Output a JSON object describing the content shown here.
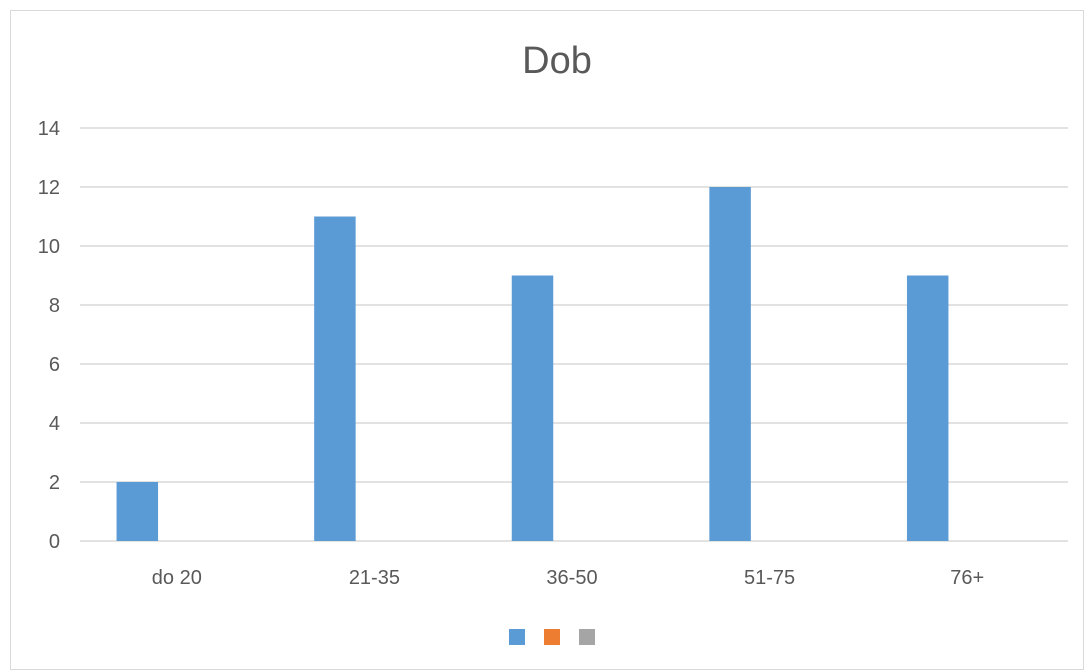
{
  "chart_data": {
    "type": "bar",
    "title": "Dob",
    "xlabel": "",
    "ylabel": "",
    "categories": [
      "do 20",
      "21-35",
      "36-50",
      "51-75",
      "76+"
    ],
    "series": [
      {
        "values": [
          2,
          11,
          9,
          12,
          9
        ],
        "color": "#5b9bd5"
      },
      {
        "values": [
          null,
          null,
          null,
          null,
          null
        ],
        "color": "#ed7d31"
      },
      {
        "values": [
          null,
          null,
          null,
          null,
          null
        ],
        "color": "#a5a5a5"
      }
    ],
    "ylim": [
      0,
      14
    ],
    "yticks": [
      0,
      2,
      4,
      6,
      8,
      10,
      12,
      14
    ],
    "grid": true,
    "legend": "bottom",
    "gridline_color": "#d9d9d9"
  }
}
